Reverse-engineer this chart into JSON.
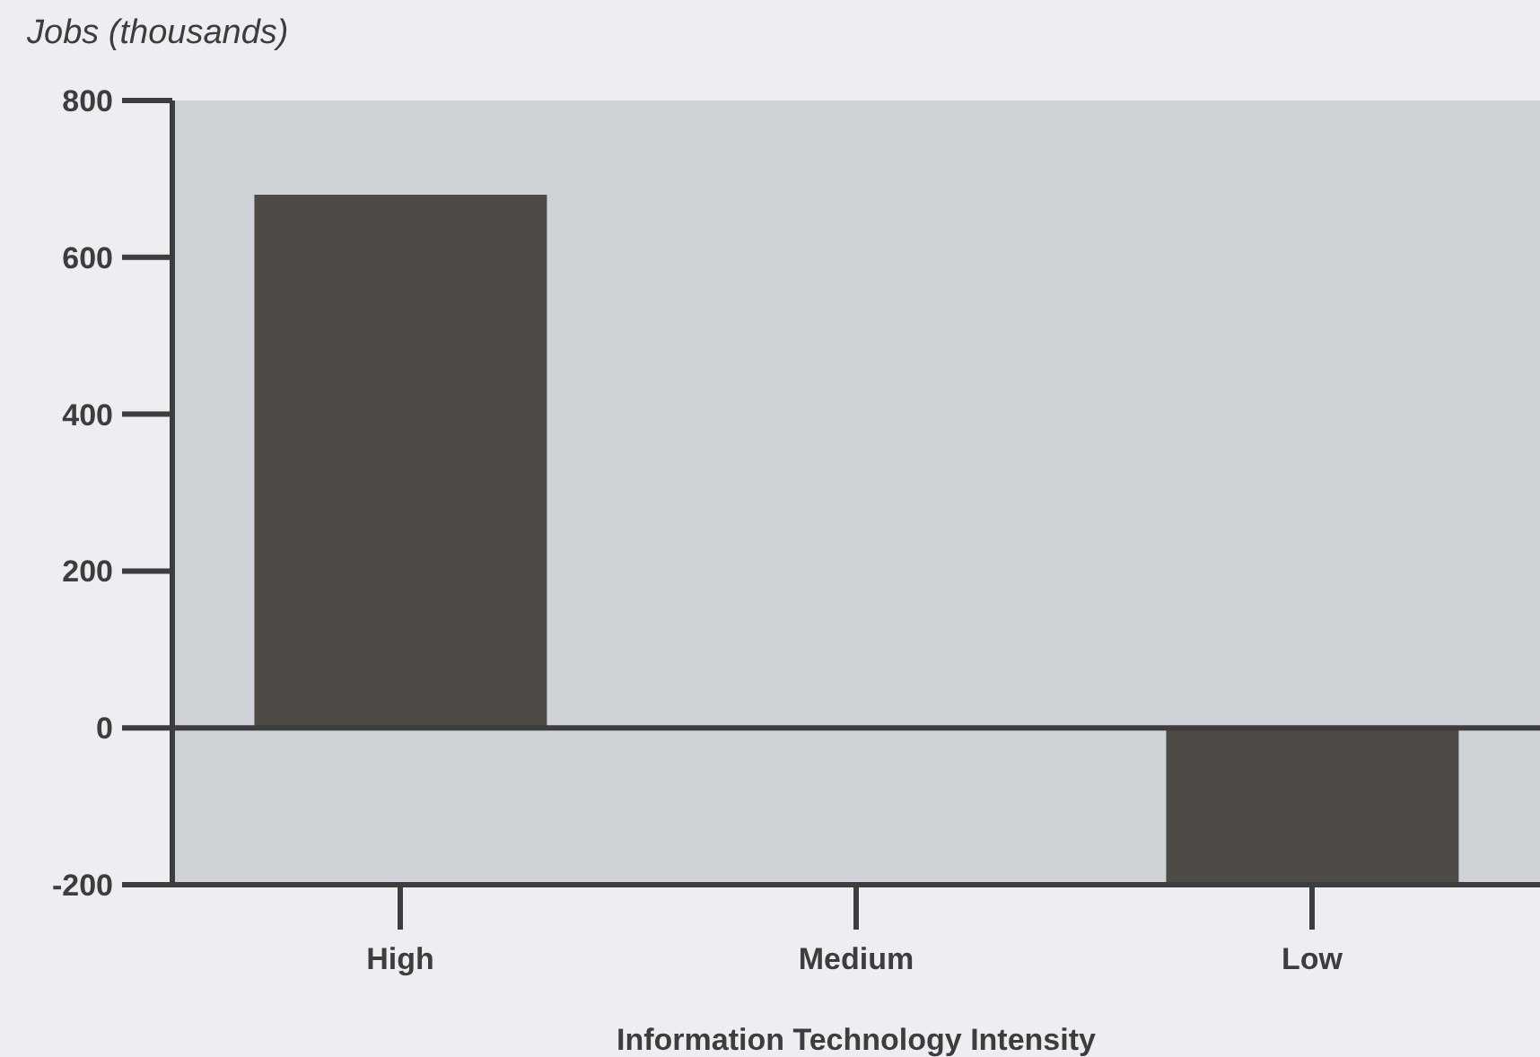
{
  "chart_data": {
    "type": "bar",
    "ylabel": "Jobs (thousands)",
    "xlabel": "Information Technology Intensity",
    "categories": [
      "High",
      "Medium",
      "Low"
    ],
    "values": [
      680,
      0,
      -200
    ],
    "color": "#4e4a46",
    "ylim": [
      -200,
      800
    ],
    "yticks": [
      -200,
      0,
      200,
      400,
      600,
      800
    ],
    "ref_lines": [
      {
        "axis": "y",
        "value": 0,
        "color": "#3d3d3d"
      }
    ]
  }
}
